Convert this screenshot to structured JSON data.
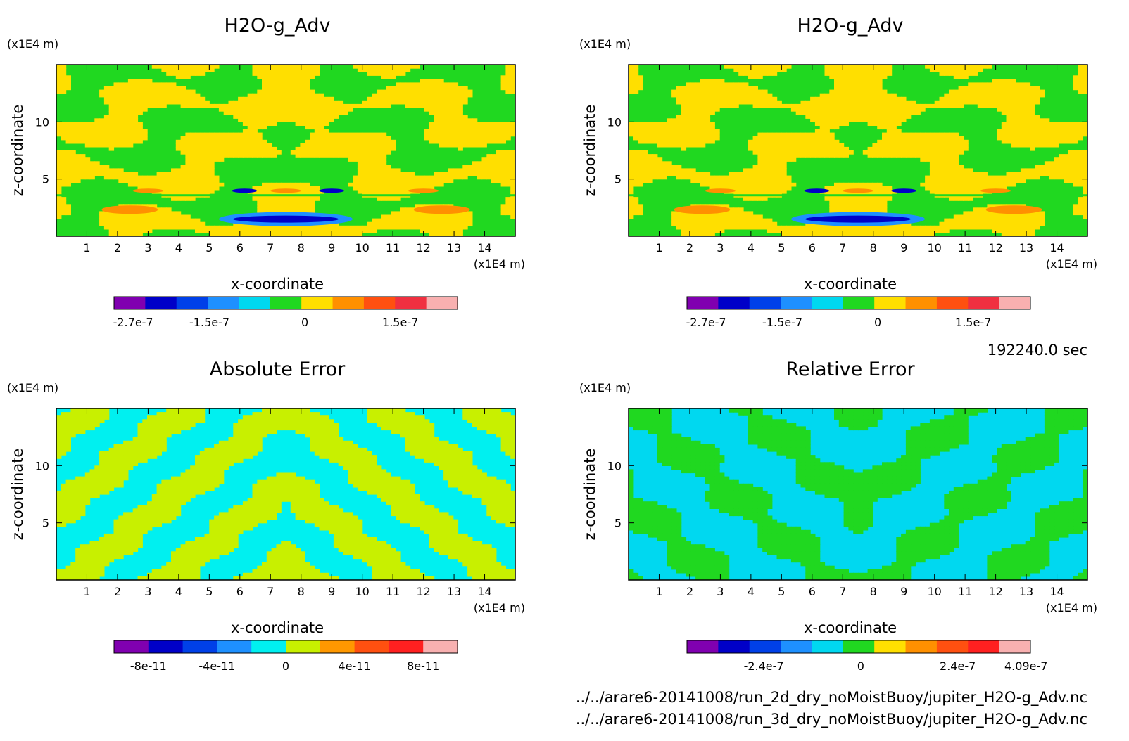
{
  "time_label": "192240.0 sec",
  "footer": {
    "file1": "../../arare6-20141008/run_2d_dry_noMoistBuoy/jupiter_H2O-g_Adv.nc",
    "file2": "../../arare6-20141008/run_3d_dry_noMoistBuoy/jupiter_H2O-g_Adv.nc"
  },
  "chart_data": [
    {
      "type": "heatmap",
      "title": "H2O-g_Adv",
      "xlabel": "x-coordinate",
      "ylabel": "z-coordinate",
      "x_unit": "(x1E4 m)",
      "y_unit": "(x1E4 m)",
      "x_ticks": [
        "1",
        "2",
        "3",
        "4",
        "5",
        "6",
        "7",
        "8",
        "9",
        "10",
        "11",
        "12",
        "13",
        "14"
      ],
      "y_ticks": [
        "5",
        "10"
      ],
      "xlim": [
        0,
        15
      ],
      "ylim": [
        0,
        15
      ],
      "field_description": "mostly between 0 and 1.5e-7 with a band of maxima at 3.5 and negative minima below 3.5 at center",
      "colorbar": {
        "colors": [
          "#8000b0",
          "#0000c8",
          "#0040e8",
          "#1e90ff",
          "#00d8f0",
          "#20d820",
          "#ffdf00",
          "#ff9000",
          "#ff5010",
          "#f03040",
          "#f8b0b0"
        ],
        "tick_labels": [
          "-2.7e-7",
          "-1.5e-7",
          "0",
          "1.5e-7"
        ],
        "tick_values": [
          -2.7e-07,
          -1.5e-07,
          0,
          1.5e-07
        ],
        "range": [
          -3e-07,
          2.4e-07
        ]
      },
      "palette_in_plot": {
        "negative": "#20d820",
        "positive": "#ffdf00",
        "high": "#ff9000",
        "low": "#0000c8"
      }
    },
    {
      "type": "heatmap",
      "title": "H2O-g_Adv",
      "xlabel": "x-coordinate",
      "ylabel": "z-coordinate",
      "x_unit": "(x1E4 m)",
      "y_unit": "(x1E4 m)",
      "x_ticks": [
        "1",
        "2",
        "3",
        "4",
        "5",
        "6",
        "7",
        "8",
        "9",
        "10",
        "11",
        "12",
        "13",
        "14"
      ],
      "y_ticks": [
        "5",
        "10"
      ],
      "xlim": [
        0,
        15
      ],
      "ylim": [
        0,
        15
      ],
      "colorbar": {
        "colors": [
          "#8000b0",
          "#0000c8",
          "#0040e8",
          "#1e90ff",
          "#00d8f0",
          "#20d820",
          "#ffdf00",
          "#ff9000",
          "#ff5010",
          "#f03040",
          "#f8b0b0"
        ],
        "tick_labels": [
          "-2.7e-7",
          "-1.5e-7",
          "0",
          "1.5e-7"
        ],
        "tick_values": [
          -2.7e-07,
          -1.5e-07,
          0,
          1.5e-07
        ],
        "range": [
          -3e-07,
          2.4e-07
        ]
      },
      "palette_in_plot": {
        "negative": "#20d820",
        "positive": "#ffdf00",
        "high": "#ff9000",
        "low": "#0000c8"
      }
    },
    {
      "type": "heatmap",
      "title": "Absolute Error",
      "xlabel": "x-coordinate",
      "ylabel": "z-coordinate",
      "x_unit": "(x1E4 m)",
      "y_unit": "(x1E4 m)",
      "x_ticks": [
        "1",
        "2",
        "3",
        "4",
        "5",
        "6",
        "7",
        "8",
        "9",
        "10",
        "11",
        "12",
        "13",
        "14"
      ],
      "y_ticks": [
        "5",
        "10"
      ],
      "xlim": [
        0,
        15
      ],
      "ylim": [
        0,
        15
      ],
      "colorbar": {
        "colors": [
          "#8000b0",
          "#0000c8",
          "#0040e8",
          "#1e90ff",
          "#00f0f0",
          "#c8f000",
          "#ff9800",
          "#ff5010",
          "#ff2020",
          "#f8b0b0"
        ],
        "tick_labels": [
          "-8e-11",
          "-4e-11",
          "0",
          "4e-11",
          "8e-11"
        ],
        "tick_values": [
          -8e-11,
          -4e-11,
          0,
          4e-11,
          8e-11
        ],
        "range": [
          -1e-10,
          1e-10
        ]
      },
      "palette_in_plot": {
        "negative": "#00f0f0",
        "positive": "#c8f000"
      }
    },
    {
      "type": "heatmap",
      "title": "Relative Error",
      "xlabel": "x-coordinate",
      "ylabel": "z-coordinate",
      "x_unit": "(x1E4 m)",
      "y_unit": "(x1E4 m)",
      "x_ticks": [
        "1",
        "2",
        "3",
        "4",
        "5",
        "6",
        "7",
        "8",
        "9",
        "10",
        "11",
        "12",
        "13",
        "14"
      ],
      "y_ticks": [
        "5",
        "10"
      ],
      "xlim": [
        0,
        15
      ],
      "ylim": [
        0,
        15
      ],
      "colorbar": {
        "colors": [
          "#8000b0",
          "#0000c8",
          "#0040e8",
          "#1e90ff",
          "#00d8f0",
          "#20d820",
          "#ffdf00",
          "#ff9000",
          "#ff5010",
          "#ff2020",
          "#f8b0b0"
        ],
        "tick_labels": [
          "-2.4e-7",
          "0",
          "2.4e-7",
          "4.09e-7"
        ],
        "tick_values": [
          -2.4e-07,
          0,
          2.4e-07,
          4.09e-07
        ],
        "range": [
          -4.3e-07,
          4.2e-07
        ]
      },
      "palette_in_plot": {
        "negative": "#00d8f0",
        "positive": "#20d820"
      }
    }
  ]
}
